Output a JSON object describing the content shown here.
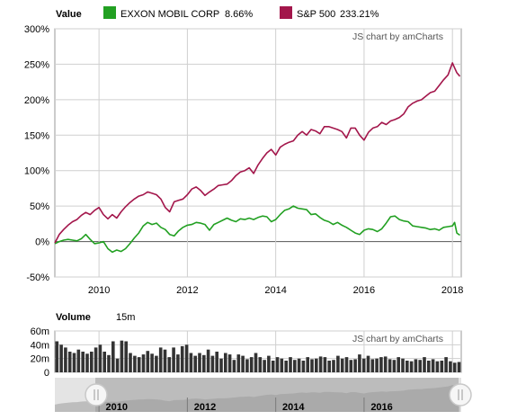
{
  "legend": {
    "value_label": "Value",
    "items": [
      {
        "name": "EXXON MOBIL CORP",
        "value": "8.66%",
        "color": "#22a022"
      },
      {
        "name": "S&P 500",
        "value": "233.21%",
        "color": "#a3164b"
      }
    ]
  },
  "credit": "JS chart by amCharts",
  "volume_panel": {
    "label": "Volume",
    "value": "15m"
  },
  "chart_data": [
    {
      "type": "line",
      "title": "",
      "xlabel": "",
      "ylabel": "",
      "ylim": [
        -50,
        300
      ],
      "xlim": [
        2009.0,
        2018.2
      ],
      "grid": true,
      "legend": "top-left",
      "y_ticks": [
        "-50%",
        "0%",
        "50%",
        "100%",
        "150%",
        "200%",
        "250%",
        "300%"
      ],
      "x_ticks": [
        "2010",
        "2012",
        "2014",
        "2016",
        "2018"
      ],
      "series": [
        {
          "name": "EXXON MOBIL CORP",
          "color": "#22a022",
          "x": [
            2009.0,
            2009.1,
            2009.2,
            2009.3,
            2009.4,
            2009.5,
            2009.6,
            2009.7,
            2009.8,
            2009.9,
            2010.0,
            2010.1,
            2010.2,
            2010.3,
            2010.4,
            2010.5,
            2010.6,
            2010.7,
            2010.8,
            2010.9,
            2011.0,
            2011.1,
            2011.2,
            2011.3,
            2011.4,
            2011.5,
            2011.6,
            2011.7,
            2011.8,
            2011.9,
            2012.0,
            2012.1,
            2012.2,
            2012.3,
            2012.4,
            2012.5,
            2012.6,
            2012.7,
            2012.8,
            2012.9,
            2013.0,
            2013.1,
            2013.2,
            2013.3,
            2013.4,
            2013.5,
            2013.6,
            2013.7,
            2013.8,
            2013.9,
            2014.0,
            2014.1,
            2014.2,
            2014.3,
            2014.4,
            2014.5,
            2014.6,
            2014.7,
            2014.8,
            2014.9,
            2015.0,
            2015.1,
            2015.2,
            2015.3,
            2015.4,
            2015.5,
            2015.6,
            2015.7,
            2015.8,
            2015.9,
            2016.0,
            2016.1,
            2016.2,
            2016.3,
            2016.4,
            2016.5,
            2016.6,
            2016.7,
            2016.8,
            2016.9,
            2017.0,
            2017.1,
            2017.2,
            2017.3,
            2017.4,
            2017.5,
            2017.6,
            2017.7,
            2017.8,
            2017.9,
            2018.0,
            2018.05,
            2018.1,
            2018.17
          ],
          "values": [
            -3,
            0,
            2,
            3,
            2,
            1,
            4,
            10,
            3,
            -3,
            -2,
            0,
            -10,
            -15,
            -12,
            -14,
            -10,
            -3,
            5,
            12,
            22,
            27,
            24,
            26,
            20,
            17,
            10,
            8,
            15,
            20,
            23,
            24,
            27,
            26,
            24,
            16,
            24,
            27,
            30,
            33,
            30,
            28,
            32,
            31,
            33,
            31,
            34,
            36,
            35,
            28,
            31,
            38,
            44,
            46,
            50,
            47,
            46,
            45,
            38,
            39,
            34,
            30,
            28,
            24,
            27,
            23,
            20,
            16,
            12,
            10,
            16,
            18,
            17,
            14,
            18,
            26,
            35,
            36,
            31,
            29,
            28,
            22,
            21,
            20,
            19,
            17,
            18,
            16,
            20,
            21,
            22,
            27,
            12,
            9
          ]
        },
        {
          "name": "S&P 500",
          "color": "#a3164b",
          "x": [
            2009.0,
            2009.1,
            2009.2,
            2009.3,
            2009.4,
            2009.5,
            2009.6,
            2009.7,
            2009.8,
            2009.9,
            2010.0,
            2010.1,
            2010.2,
            2010.3,
            2010.4,
            2010.5,
            2010.6,
            2010.7,
            2010.8,
            2010.9,
            2011.0,
            2011.1,
            2011.2,
            2011.3,
            2011.4,
            2011.5,
            2011.6,
            2011.7,
            2011.8,
            2011.9,
            2012.0,
            2012.1,
            2012.2,
            2012.3,
            2012.4,
            2012.5,
            2012.6,
            2012.7,
            2012.8,
            2012.9,
            2013.0,
            2013.1,
            2013.2,
            2013.3,
            2013.4,
            2013.5,
            2013.6,
            2013.7,
            2013.8,
            2013.9,
            2014.0,
            2014.1,
            2014.2,
            2014.3,
            2014.4,
            2014.5,
            2014.6,
            2014.7,
            2014.8,
            2014.9,
            2015.0,
            2015.1,
            2015.2,
            2015.3,
            2015.4,
            2015.5,
            2015.6,
            2015.7,
            2015.8,
            2015.9,
            2016.0,
            2016.1,
            2016.2,
            2016.3,
            2016.4,
            2016.5,
            2016.6,
            2016.7,
            2016.8,
            2016.9,
            2017.0,
            2017.1,
            2017.2,
            2017.3,
            2017.4,
            2017.5,
            2017.6,
            2017.7,
            2017.8,
            2017.9,
            2018.0,
            2018.05,
            2018.1,
            2018.17
          ],
          "values": [
            -2,
            10,
            17,
            23,
            28,
            31,
            37,
            41,
            38,
            44,
            48,
            38,
            32,
            38,
            33,
            42,
            49,
            55,
            60,
            64,
            66,
            70,
            68,
            66,
            60,
            48,
            42,
            56,
            58,
            60,
            66,
            74,
            77,
            72,
            65,
            70,
            74,
            79,
            80,
            81,
            86,
            93,
            98,
            100,
            104,
            96,
            108,
            117,
            125,
            130,
            122,
            133,
            137,
            140,
            142,
            150,
            155,
            150,
            158,
            156,
            152,
            162,
            162,
            160,
            158,
            155,
            146,
            160,
            160,
            150,
            143,
            154,
            160,
            162,
            168,
            165,
            170,
            172,
            175,
            180,
            190,
            195,
            198,
            200,
            205,
            210,
            212,
            220,
            228,
            235,
            252,
            245,
            238,
            233
          ]
        }
      ]
    },
    {
      "type": "bar",
      "title": "",
      "ylim": [
        0,
        60
      ],
      "y_ticks": [
        "0",
        "20m",
        "40m",
        "60m"
      ],
      "xlim": [
        2009.0,
        2018.2
      ],
      "grid": true,
      "series": [
        {
          "name": "Volume",
          "color": "#333333",
          "values": [
            45,
            40,
            36,
            30,
            28,
            33,
            30,
            27,
            30,
            36,
            40,
            30,
            25,
            45,
            20,
            46,
            45,
            28,
            24,
            22,
            26,
            31,
            27,
            24,
            36,
            33,
            22,
            36,
            26,
            38,
            40,
            28,
            24,
            28,
            25,
            33,
            24,
            30,
            20,
            28,
            26,
            18,
            26,
            24,
            19,
            22,
            28,
            22,
            18,
            24,
            17,
            22,
            20,
            17,
            22,
            18,
            20,
            17,
            22,
            19,
            20,
            23,
            22,
            17,
            18,
            24,
            20,
            22,
            18,
            19,
            26,
            20,
            24,
            19,
            20,
            22,
            23,
            19,
            18,
            22,
            20,
            17,
            16,
            19,
            18,
            22,
            17,
            19,
            16,
            17,
            22,
            16,
            14,
            15
          ]
        }
      ]
    }
  ],
  "navigator": {
    "x_ticks": [
      "2010",
      "2012",
      "2014",
      "2016"
    ]
  }
}
